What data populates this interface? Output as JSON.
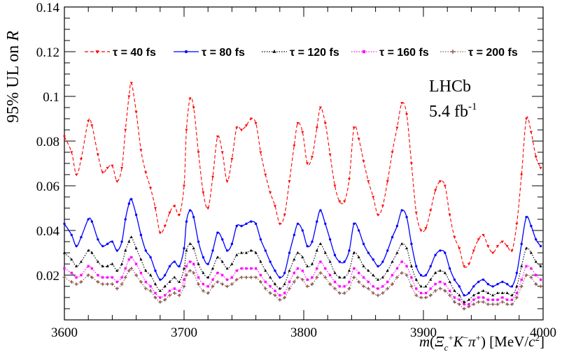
{
  "chart_data": {
    "type": "line",
    "ylabel": "95% UL on R",
    "xlabel": "m(Ξc+K−π+) [MeV/c2]",
    "xlim": [
      3600,
      4000
    ],
    "ylim": [
      0,
      0.14
    ],
    "x_ticks": [
      3600,
      3700,
      3800,
      3900,
      4000
    ],
    "x_tick_labels": [
      "3600",
      "3700",
      "3800",
      "3900",
      "4000"
    ],
    "y_ticks": [
      0.02,
      0.04,
      0.06,
      0.08,
      0.1,
      0.12,
      0.14
    ],
    "y_tick_labels": [
      "0.02",
      "0.04",
      "0.06",
      "0.08",
      "0.1",
      "0.12",
      "0.14"
    ],
    "legend_position": "top",
    "annotation": {
      "line1": "LHCb",
      "line2_value": "5.4 fb",
      "line2_exp": "-1"
    },
    "series": [
      {
        "name": "τ = 40 fs",
        "color": "#ff0000",
        "dash": "dashed",
        "marker": "triangle-down",
        "x": [
          3600,
          3606,
          3610,
          3614,
          3620,
          3623,
          3628,
          3632,
          3636,
          3640,
          3644,
          3648,
          3651,
          3654,
          3656,
          3660,
          3664,
          3668,
          3672,
          3676,
          3680,
          3684,
          3688,
          3692,
          3696,
          3700,
          3702,
          3705,
          3708,
          3712,
          3716,
          3720,
          3724,
          3728,
          3732,
          3736,
          3740,
          3744,
          3748,
          3752,
          3756,
          3760,
          3764,
          3768,
          3772,
          3776,
          3780,
          3784,
          3788,
          3792,
          3795,
          3799,
          3803,
          3807,
          3811,
          3814,
          3818,
          3822,
          3826,
          3830,
          3834,
          3838,
          3842,
          3846,
          3850,
          3854,
          3858,
          3862,
          3866,
          3870,
          3874,
          3878,
          3882,
          3886,
          3890,
          3894,
          3898,
          3902,
          3906,
          3910,
          3914,
          3918,
          3922,
          3926,
          3930,
          3934,
          3938,
          3942,
          3946,
          3950,
          3954,
          3958,
          3962,
          3966,
          3970,
          3974,
          3978,
          3982,
          3986,
          3990,
          3994,
          3998
        ],
        "values": [
          0.082,
          0.075,
          0.065,
          0.072,
          0.089,
          0.087,
          0.074,
          0.066,
          0.068,
          0.069,
          0.062,
          0.068,
          0.085,
          0.1,
          0.106,
          0.093,
          0.076,
          0.066,
          0.059,
          0.05,
          0.039,
          0.042,
          0.048,
          0.051,
          0.047,
          0.06,
          0.085,
          0.099,
          0.095,
          0.075,
          0.057,
          0.05,
          0.064,
          0.082,
          0.075,
          0.062,
          0.072,
          0.086,
          0.085,
          0.087,
          0.09,
          0.088,
          0.075,
          0.065,
          0.057,
          0.051,
          0.043,
          0.047,
          0.062,
          0.078,
          0.088,
          0.084,
          0.07,
          0.073,
          0.086,
          0.095,
          0.088,
          0.074,
          0.06,
          0.053,
          0.053,
          0.063,
          0.086,
          0.081,
          0.071,
          0.062,
          0.055,
          0.047,
          0.051,
          0.062,
          0.075,
          0.086,
          0.097,
          0.092,
          0.07,
          0.048,
          0.04,
          0.041,
          0.049,
          0.058,
          0.062,
          0.06,
          0.047,
          0.037,
          0.032,
          0.024,
          0.025,
          0.031,
          0.036,
          0.038,
          0.033,
          0.03,
          0.033,
          0.035,
          0.033,
          0.031,
          0.043,
          0.065,
          0.09,
          0.084,
          0.073,
          0.068
        ]
      },
      {
        "name": "τ = 80 fs",
        "color": "#0000ff",
        "dash": "solid",
        "marker": "circle",
        "x": [
          3600,
          3606,
          3610,
          3614,
          3620,
          3623,
          3628,
          3632,
          3636,
          3640,
          3644,
          3648,
          3651,
          3654,
          3656,
          3660,
          3664,
          3668,
          3672,
          3676,
          3680,
          3684,
          3688,
          3692,
          3696,
          3700,
          3702,
          3705,
          3708,
          3712,
          3716,
          3720,
          3724,
          3728,
          3732,
          3736,
          3740,
          3744,
          3748,
          3752,
          3756,
          3760,
          3764,
          3768,
          3772,
          3776,
          3780,
          3784,
          3788,
          3792,
          3795,
          3799,
          3803,
          3807,
          3811,
          3814,
          3818,
          3822,
          3826,
          3830,
          3834,
          3838,
          3842,
          3846,
          3850,
          3854,
          3858,
          3862,
          3866,
          3870,
          3874,
          3878,
          3882,
          3886,
          3890,
          3894,
          3898,
          3902,
          3906,
          3910,
          3914,
          3918,
          3922,
          3926,
          3930,
          3934,
          3938,
          3942,
          3946,
          3950,
          3954,
          3958,
          3962,
          3966,
          3970,
          3974,
          3978,
          3982,
          3986,
          3990,
          3994,
          3998
        ],
        "values": [
          0.043,
          0.038,
          0.033,
          0.037,
          0.045,
          0.044,
          0.036,
          0.033,
          0.034,
          0.035,
          0.031,
          0.035,
          0.045,
          0.052,
          0.054,
          0.047,
          0.038,
          0.031,
          0.028,
          0.022,
          0.018,
          0.02,
          0.024,
          0.026,
          0.024,
          0.032,
          0.044,
          0.049,
          0.046,
          0.035,
          0.028,
          0.025,
          0.031,
          0.039,
          0.036,
          0.031,
          0.034,
          0.042,
          0.042,
          0.043,
          0.044,
          0.043,
          0.036,
          0.031,
          0.026,
          0.022,
          0.019,
          0.021,
          0.03,
          0.038,
          0.043,
          0.04,
          0.033,
          0.035,
          0.044,
          0.049,
          0.043,
          0.036,
          0.029,
          0.026,
          0.026,
          0.031,
          0.043,
          0.04,
          0.034,
          0.03,
          0.027,
          0.024,
          0.026,
          0.031,
          0.037,
          0.042,
          0.049,
          0.046,
          0.034,
          0.024,
          0.02,
          0.02,
          0.024,
          0.029,
          0.031,
          0.03,
          0.023,
          0.018,
          0.015,
          0.011,
          0.012,
          0.015,
          0.017,
          0.018,
          0.016,
          0.015,
          0.016,
          0.017,
          0.016,
          0.015,
          0.021,
          0.034,
          0.046,
          0.042,
          0.036,
          0.033
        ]
      },
      {
        "name": "τ = 120 fs",
        "color": "#000000",
        "dash": "dotted",
        "marker": "triangle-up",
        "x": [
          3600,
          3606,
          3610,
          3614,
          3620,
          3623,
          3628,
          3632,
          3636,
          3640,
          3644,
          3648,
          3651,
          3654,
          3656,
          3660,
          3664,
          3668,
          3672,
          3676,
          3680,
          3684,
          3688,
          3692,
          3696,
          3700,
          3702,
          3705,
          3708,
          3712,
          3716,
          3720,
          3724,
          3728,
          3732,
          3736,
          3740,
          3744,
          3748,
          3752,
          3756,
          3760,
          3764,
          3768,
          3772,
          3776,
          3780,
          3784,
          3788,
          3792,
          3795,
          3799,
          3803,
          3807,
          3811,
          3814,
          3818,
          3822,
          3826,
          3830,
          3834,
          3838,
          3842,
          3846,
          3850,
          3854,
          3858,
          3862,
          3866,
          3870,
          3874,
          3878,
          3882,
          3886,
          3890,
          3894,
          3898,
          3902,
          3906,
          3910,
          3914,
          3918,
          3922,
          3926,
          3930,
          3934,
          3938,
          3942,
          3946,
          3950,
          3954,
          3958,
          3962,
          3966,
          3970,
          3974,
          3978,
          3982,
          3986,
          3990,
          3994,
          3998
        ],
        "values": [
          0.03,
          0.027,
          0.024,
          0.026,
          0.031,
          0.03,
          0.026,
          0.024,
          0.024,
          0.025,
          0.022,
          0.025,
          0.031,
          0.035,
          0.037,
          0.032,
          0.027,
          0.022,
          0.02,
          0.016,
          0.013,
          0.015,
          0.017,
          0.019,
          0.017,
          0.023,
          0.031,
          0.034,
          0.032,
          0.025,
          0.021,
          0.019,
          0.023,
          0.028,
          0.026,
          0.023,
          0.025,
          0.029,
          0.03,
          0.03,
          0.031,
          0.03,
          0.026,
          0.022,
          0.019,
          0.016,
          0.014,
          0.016,
          0.022,
          0.027,
          0.03,
          0.028,
          0.024,
          0.025,
          0.031,
          0.034,
          0.03,
          0.026,
          0.021,
          0.019,
          0.019,
          0.022,
          0.03,
          0.028,
          0.024,
          0.022,
          0.02,
          0.018,
          0.019,
          0.022,
          0.026,
          0.03,
          0.034,
          0.032,
          0.024,
          0.018,
          0.015,
          0.015,
          0.018,
          0.021,
          0.022,
          0.021,
          0.017,
          0.013,
          0.011,
          0.008,
          0.009,
          0.011,
          0.012,
          0.013,
          0.012,
          0.011,
          0.012,
          0.012,
          0.012,
          0.011,
          0.015,
          0.024,
          0.032,
          0.03,
          0.026,
          0.024
        ]
      },
      {
        "name": "τ = 160 fs",
        "color": "#ff00ff",
        "dash": "dotted",
        "marker": "square",
        "x": [
          3600,
          3606,
          3610,
          3614,
          3620,
          3623,
          3628,
          3632,
          3636,
          3640,
          3644,
          3648,
          3651,
          3654,
          3656,
          3660,
          3664,
          3668,
          3672,
          3676,
          3680,
          3684,
          3688,
          3692,
          3696,
          3700,
          3702,
          3705,
          3708,
          3712,
          3716,
          3720,
          3724,
          3728,
          3732,
          3736,
          3740,
          3744,
          3748,
          3752,
          3756,
          3760,
          3764,
          3768,
          3772,
          3776,
          3780,
          3784,
          3788,
          3792,
          3795,
          3799,
          3803,
          3807,
          3811,
          3814,
          3818,
          3822,
          3826,
          3830,
          3834,
          3838,
          3842,
          3846,
          3850,
          3854,
          3858,
          3862,
          3866,
          3870,
          3874,
          3878,
          3882,
          3886,
          3890,
          3894,
          3898,
          3902,
          3906,
          3910,
          3914,
          3918,
          3922,
          3926,
          3930,
          3934,
          3938,
          3942,
          3946,
          3950,
          3954,
          3958,
          3962,
          3966,
          3970,
          3974,
          3978,
          3982,
          3986,
          3990,
          3994,
          3998
        ],
        "values": [
          0.023,
          0.021,
          0.019,
          0.02,
          0.024,
          0.023,
          0.02,
          0.019,
          0.019,
          0.019,
          0.017,
          0.019,
          0.023,
          0.027,
          0.028,
          0.025,
          0.021,
          0.017,
          0.015,
          0.012,
          0.01,
          0.011,
          0.013,
          0.014,
          0.013,
          0.018,
          0.024,
          0.026,
          0.025,
          0.019,
          0.016,
          0.015,
          0.018,
          0.021,
          0.02,
          0.018,
          0.019,
          0.022,
          0.023,
          0.023,
          0.023,
          0.023,
          0.02,
          0.017,
          0.015,
          0.013,
          0.011,
          0.012,
          0.017,
          0.021,
          0.023,
          0.022,
          0.018,
          0.019,
          0.023,
          0.026,
          0.023,
          0.02,
          0.017,
          0.015,
          0.015,
          0.017,
          0.023,
          0.021,
          0.019,
          0.017,
          0.015,
          0.014,
          0.015,
          0.017,
          0.02,
          0.023,
          0.026,
          0.024,
          0.019,
          0.014,
          0.012,
          0.012,
          0.014,
          0.016,
          0.017,
          0.016,
          0.013,
          0.01,
          0.009,
          0.007,
          0.007,
          0.009,
          0.01,
          0.01,
          0.009,
          0.009,
          0.009,
          0.01,
          0.009,
          0.009,
          0.012,
          0.018,
          0.024,
          0.023,
          0.02,
          0.018
        ]
      },
      {
        "name": "τ = 200 fs",
        "color": "#8b5a50",
        "dash": "dotted",
        "marker": "cross",
        "x": [
          3600,
          3606,
          3610,
          3614,
          3620,
          3623,
          3628,
          3632,
          3636,
          3640,
          3644,
          3648,
          3651,
          3654,
          3656,
          3660,
          3664,
          3668,
          3672,
          3676,
          3680,
          3684,
          3688,
          3692,
          3696,
          3700,
          3702,
          3705,
          3708,
          3712,
          3716,
          3720,
          3724,
          3728,
          3732,
          3736,
          3740,
          3744,
          3748,
          3752,
          3756,
          3760,
          3764,
          3768,
          3772,
          3776,
          3780,
          3784,
          3788,
          3792,
          3795,
          3799,
          3803,
          3807,
          3811,
          3814,
          3818,
          3822,
          3826,
          3830,
          3834,
          3838,
          3842,
          3846,
          3850,
          3854,
          3858,
          3862,
          3866,
          3870,
          3874,
          3878,
          3882,
          3886,
          3890,
          3894,
          3898,
          3902,
          3906,
          3910,
          3914,
          3918,
          3922,
          3926,
          3930,
          3934,
          3938,
          3942,
          3946,
          3950,
          3954,
          3958,
          3962,
          3966,
          3970,
          3974,
          3978,
          3982,
          3986,
          3990,
          3994,
          3998
        ],
        "values": [
          0.019,
          0.017,
          0.016,
          0.017,
          0.02,
          0.019,
          0.017,
          0.016,
          0.016,
          0.016,
          0.014,
          0.016,
          0.019,
          0.022,
          0.023,
          0.02,
          0.017,
          0.014,
          0.013,
          0.01,
          0.008,
          0.009,
          0.011,
          0.012,
          0.011,
          0.015,
          0.02,
          0.022,
          0.021,
          0.016,
          0.013,
          0.012,
          0.015,
          0.017,
          0.016,
          0.015,
          0.016,
          0.018,
          0.019,
          0.019,
          0.019,
          0.019,
          0.017,
          0.014,
          0.012,
          0.011,
          0.009,
          0.01,
          0.014,
          0.017,
          0.019,
          0.018,
          0.015,
          0.016,
          0.019,
          0.021,
          0.019,
          0.016,
          0.014,
          0.012,
          0.012,
          0.014,
          0.019,
          0.017,
          0.015,
          0.014,
          0.012,
          0.011,
          0.012,
          0.014,
          0.016,
          0.019,
          0.021,
          0.02,
          0.015,
          0.011,
          0.01,
          0.01,
          0.011,
          0.013,
          0.014,
          0.013,
          0.011,
          0.008,
          0.007,
          0.005,
          0.006,
          0.007,
          0.008,
          0.008,
          0.007,
          0.007,
          0.007,
          0.008,
          0.007,
          0.007,
          0.01,
          0.015,
          0.02,
          0.019,
          0.016,
          0.015
        ]
      }
    ]
  }
}
